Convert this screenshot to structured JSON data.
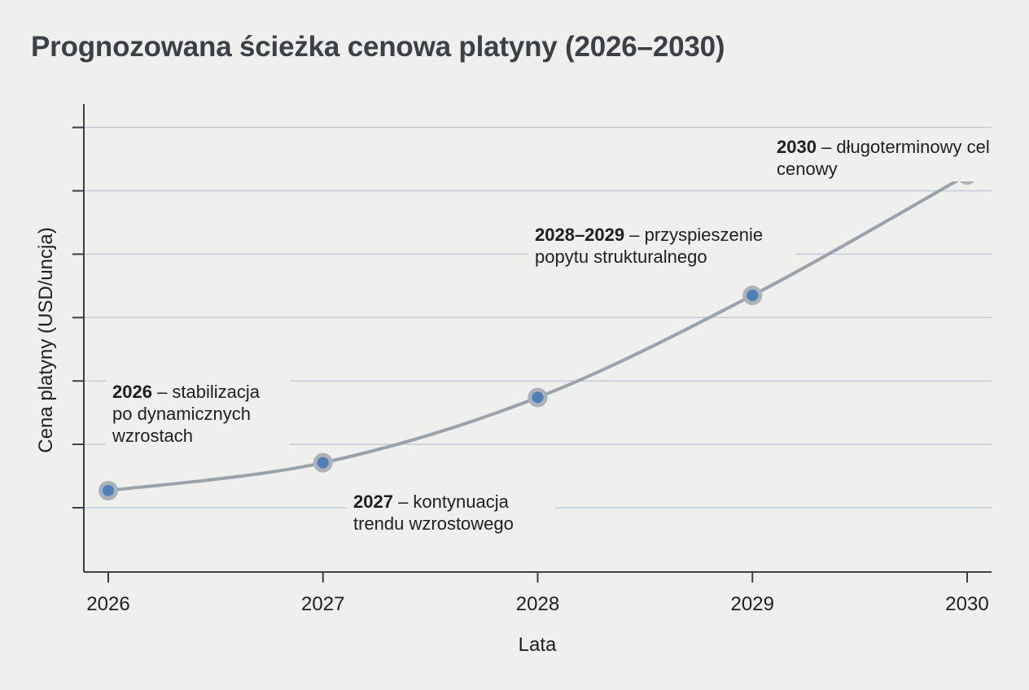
{
  "title": "Prognozowana ścieżka cenowa platyny (2026–2030)",
  "chart_data": {
    "type": "line",
    "title": "Prognozowana ścieżka cenowa platyny (2026–2030)",
    "xlabel": "Lata",
    "ylabel": "Cena platyny (USD/uncja)",
    "x": [
      2026,
      2027,
      2028,
      2029,
      2030
    ],
    "xlim": [
      2026,
      2030
    ],
    "y_ticks_labeled": false,
    "y_gridlines": 7,
    "grid": true,
    "series": [
      {
        "values": [
          0.27,
          0.71,
          1.74,
          3.35,
          5.25
        ],
        "unit": "relative (unlabeled axis)"
      }
    ],
    "color": "#9aa2ab",
    "marker_color": "#4f7fb8",
    "annotations": [
      {
        "bold": "2026",
        "text": " – stabilizacja po dynamicznych wzrostach"
      },
      {
        "bold": "2027",
        "text": " – kontynuacja trendu wzrostowego"
      },
      {
        "bold": "2028–2029",
        "text": " – przyspieszenie popytu strukturalnego"
      },
      {
        "bold": "2030",
        "text": " – długoterminowy cel cenowy"
      }
    ]
  }
}
